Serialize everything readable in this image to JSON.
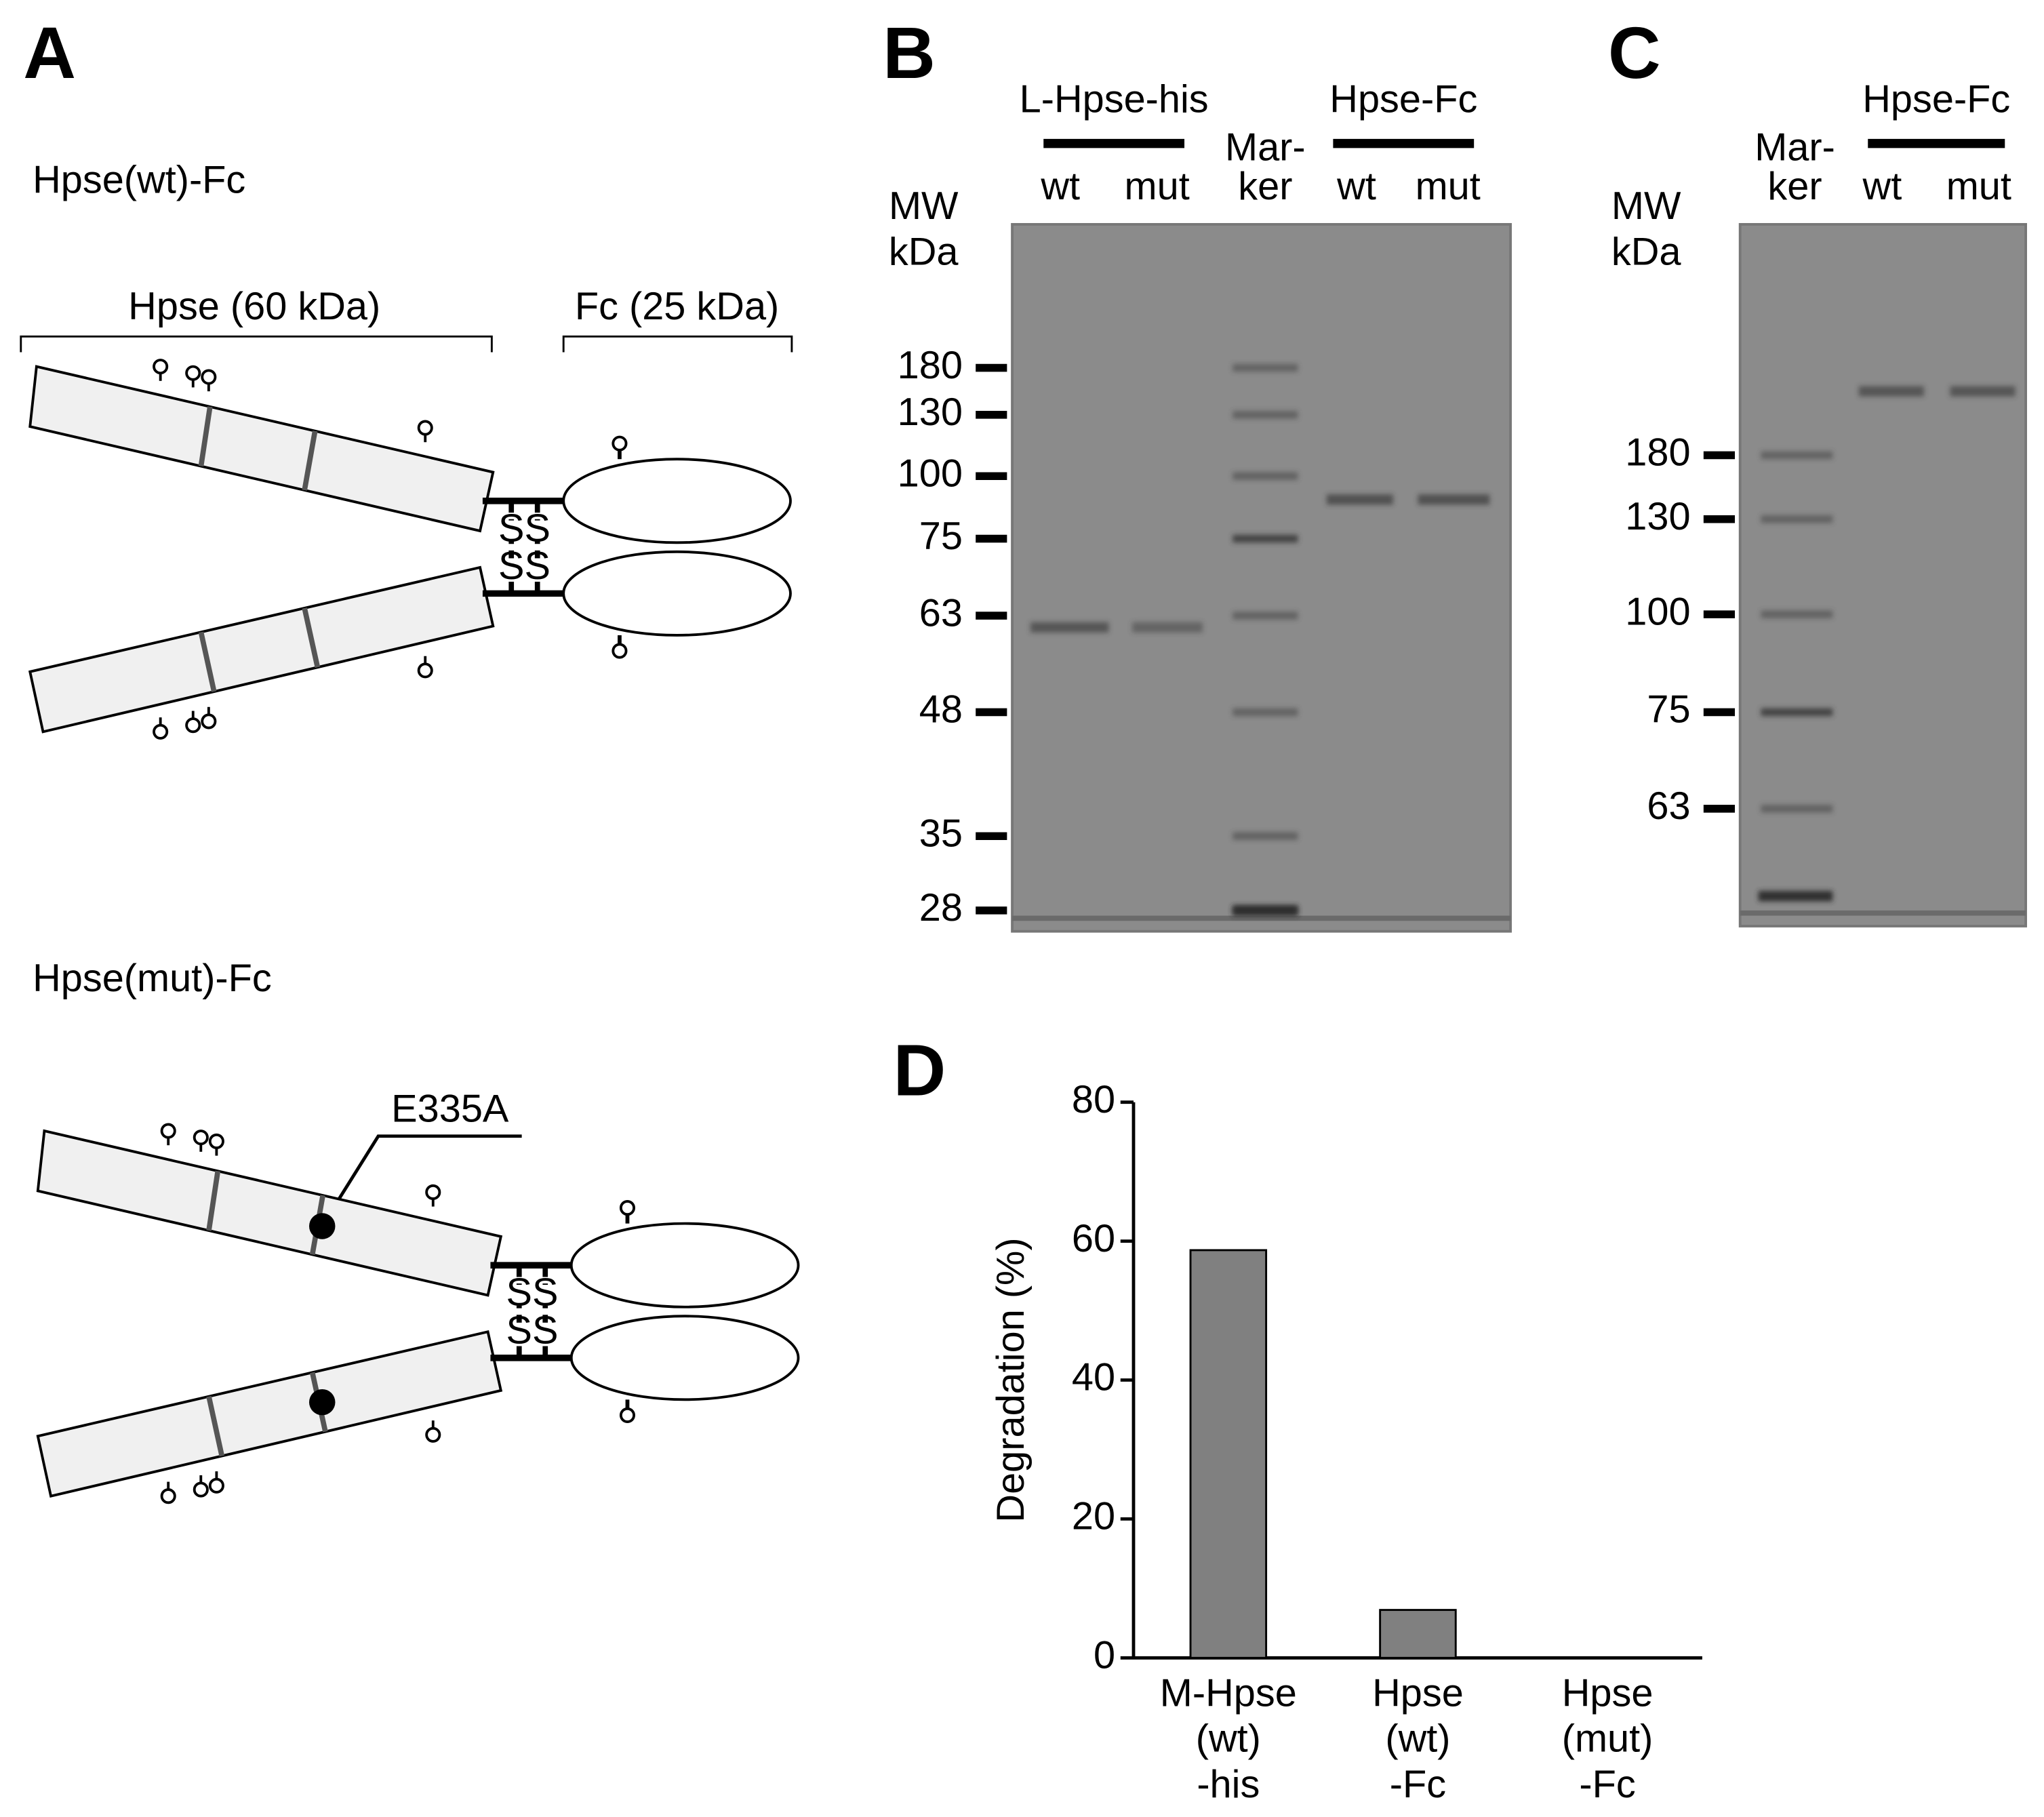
{
  "panel_a": {
    "label": "A",
    "wt_title": "Hpse(wt)-Fc",
    "mut_title": "Hpse(mut)-Fc",
    "hpse_label": "Hpse (60 kDa)",
    "fc_label": "Fc (25 kDa)",
    "mutation": "E335A",
    "disulfide": "S"
  },
  "panel_b": {
    "label": "B",
    "mw_label": [
      "MW",
      "kDa"
    ],
    "groups": [
      "L-Hpse-his",
      "Hpse-Fc"
    ],
    "lanes": [
      "wt",
      "mut",
      [
        "Mar-",
        "ker"
      ],
      "wt",
      "mut"
    ],
    "markers": [
      180,
      130,
      100,
      75,
      63,
      48,
      35,
      28
    ]
  },
  "panel_c": {
    "label": "C",
    "mw_label": [
      "MW",
      "kDa"
    ],
    "groups": [
      "Hpse-Fc"
    ],
    "lanes": [
      [
        "Mar-",
        "ker"
      ],
      "wt",
      "mut"
    ],
    "markers": [
      180,
      130,
      100,
      75,
      63
    ]
  },
  "chart_data": {
    "type": "bar",
    "label": "D",
    "ylabel": "Degradation (%)",
    "categories": [
      [
        "M-Hpse",
        "(wt)",
        "-his"
      ],
      [
        "Hpse",
        "(wt)",
        "-Fc"
      ],
      [
        "Hpse",
        "(mut)",
        "-Fc"
      ]
    ],
    "values": [
      58.7,
      6.9,
      0
    ],
    "color": "#808080",
    "ylim": [
      0,
      80
    ],
    "yticks": [
      0,
      20,
      40,
      60,
      80
    ]
  }
}
